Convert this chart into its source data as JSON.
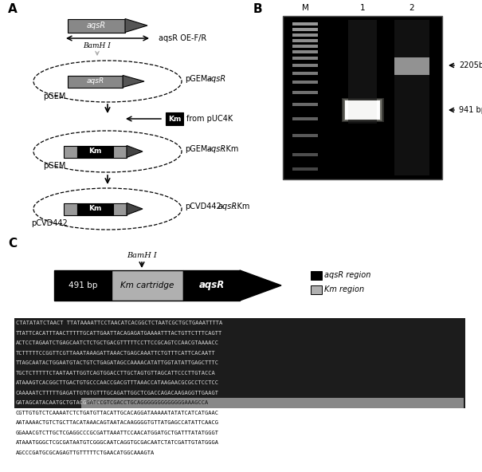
{
  "panel_A_label": "A",
  "panel_B_label": "B",
  "panel_C_label": "C",
  "gene_arrow_text": "aqsR",
  "oe_primer_text": "aqsR OE-F/R",
  "bamh1_text": "BamH I",
  "pgem_label1": "pGEM",
  "pgem_label2": "pGEM",
  "pcvd442_label": "pCVD442",
  "km_box_text": "Km",
  "bp_491_text": "491 bp",
  "km_cartridge_text": "Km cartridge",
  "aqsr_text_c": "aqsR",
  "legend_aqsr": "aqsR region",
  "legend_km": "Km region",
  "band1_label": "2205bp",
  "band2_label": "941 bp",
  "seq_lines": [
    "CTATATATCTAACT TTATAAAATTCCTAACATCACGGCTCTAATCGCTGCTGAAATTTTA",
    "TTATTCACATTTAACTTTTTGCATTGAATTACAGAGATGAAAATTTACTGTTCTTTCAGTT",
    "ACTCCTAGAATCTGAGCAATCTCTGCTGACGTTTTTCCTTCCGCAGTCCAACGTAAAACC",
    "TCTTTTTCCGGTTCGTTAAATAAAGATTAAACTGAGCAAATTCTGTTTCATTCACAATT",
    "TTAGCAATACTGGAATGTACTGTCTGAGATAGCCAAAACATATTGGTATATTGAGCTTTC",
    "TGCTCTTTTTCTAATAATTGGTCAGTGGACCTTGCTAGTGTTAGCATTCCCTTGTACCA",
    "ATAAAGTCACGGCTTGACTGTGCCCAACCGACGTTTAAACCATAAGAACGCGCCTCCTCC",
    "CAAAAATCTTTTTGAGATTGTGTGTTTGCAGATTGGCTCGACCAGACAAGAGGTTGAAGT",
    "GATAGCATACAATGCTGTACGGTTG GATCCGTCGACCTGCAGGGGGGGGGGGGGAAAGCCA",
    "CGTTGTGTCTCAAAATCTCTGATGTTACATTGCACAGGATAAAAATATATCATCATGAAC",
    "AATAAAACTGTCTGCTTACATAAACAGTAATACAAGGGGTGTTATGAGCCATATTCAACG",
    "GGAAACGTCTTGCTCGAGGCCCGCGATTAAATTCCAACATGGATGCTGATTTATATGGGT",
    "ATAAATGGGCTCGCGATAATGTCGGGCAATCAGGTGCGACAATCTATCGATTGTATGGGA",
    "AGCCCGATGCGCAGAGTTGTTTTTCTGAACATGGCAAAGTA"
  ],
  "seq_highlight_rows": 9,
  "seq_partial_row": 8,
  "seq_partial_split": 25,
  "bg_color": "#ffffff",
  "figure_width": 6.05,
  "figure_height": 5.92
}
